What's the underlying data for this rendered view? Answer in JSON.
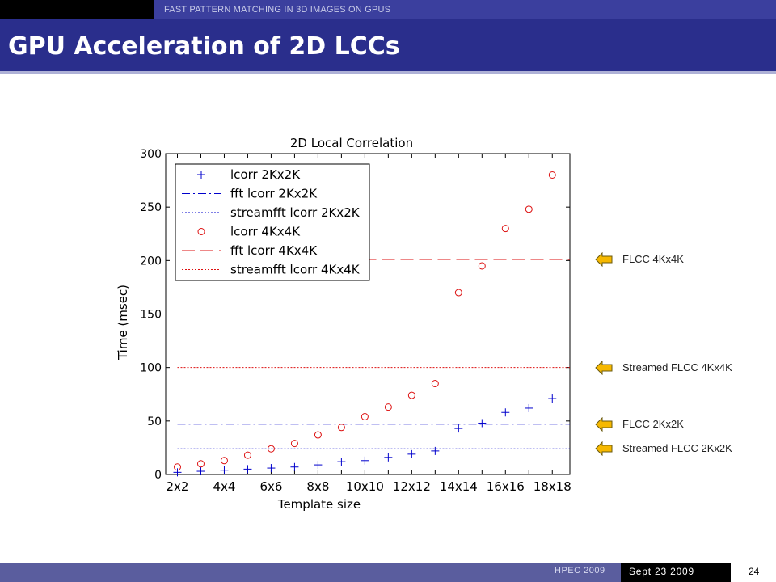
{
  "header": {
    "subtitle": "FAST PATTERN MATCHING IN 3D IMAGES ON GPUS"
  },
  "slide": {
    "title": "GPU Acceleration of 2D LCCs"
  },
  "annotations": [
    {
      "label": "FLCC 4Kx4K",
      "value": 201
    },
    {
      "label": "Streamed FLCC 4Kx4K",
      "value": 100
    },
    {
      "label": "FLCC 2Kx2K",
      "value": 47
    },
    {
      "label": "Streamed FLCC 2Kx2K",
      "value": 24
    }
  ],
  "footer": {
    "left": "HPEC 2009",
    "date": "Sept 23 2009",
    "page": "24"
  },
  "colors": {
    "blue": "#0000cc",
    "red": "#dd1111",
    "arrow": "#f6b800",
    "title_bar": "#2a2e8c"
  },
  "chart_data": {
    "type": "scatter",
    "title": "2D Local Correlation",
    "xlabel": "Template size",
    "ylabel": "Time (msec)",
    "ylim": [
      0,
      300
    ],
    "yticks": [
      0,
      50,
      100,
      150,
      200,
      250,
      300
    ],
    "xticks": [
      "2x2",
      "4x4",
      "6x6",
      "8x8",
      "10x10",
      "12x12",
      "14x14",
      "16x16",
      "18x18"
    ],
    "legend_position": "top-left",
    "x": [
      2,
      3,
      4,
      5,
      6,
      7,
      8,
      9,
      10,
      11,
      12,
      13,
      14,
      15,
      16,
      17,
      18
    ],
    "series": [
      {
        "name": "lcorr 2Kx2K",
        "kind": "points",
        "marker": "+",
        "color": "#0000cc",
        "values": [
          2,
          3,
          4,
          5,
          6,
          7,
          9,
          12,
          13,
          16,
          19,
          22,
          43,
          48,
          58,
          62,
          71
        ]
      },
      {
        "name": "fft lcorr 2Kx2K",
        "kind": "hline",
        "style": "dashdot",
        "color": "#0000cc",
        "value": 47
      },
      {
        "name": "streamfft lcorr 2Kx2K",
        "kind": "hline",
        "style": "dotted",
        "color": "#0000cc",
        "value": 24
      },
      {
        "name": "lcorr 4Kx4K",
        "kind": "points",
        "marker": "o",
        "color": "#dd1111",
        "values": [
          7,
          10,
          13,
          18,
          24,
          29,
          37,
          44,
          54,
          63,
          74,
          85,
          170,
          195,
          230,
          248,
          280
        ]
      },
      {
        "name": "fft lcorr 4Kx4K",
        "kind": "hline",
        "style": "dashed",
        "color": "#dd1111",
        "value": 201
      },
      {
        "name": "streamfft lcorr 4Kx4K",
        "kind": "hline",
        "style": "dotted",
        "color": "#dd1111",
        "value": 100
      }
    ]
  }
}
